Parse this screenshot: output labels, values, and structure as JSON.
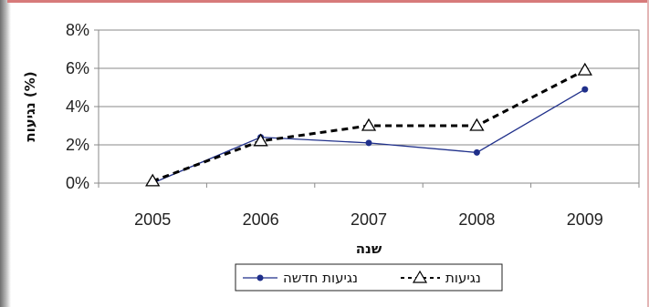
{
  "chart_data": {
    "type": "line",
    "categories": [
      "2005",
      "2006",
      "2007",
      "2008",
      "2009"
    ],
    "series": [
      {
        "name": "נגיעות חדשה",
        "values": [
          0.0,
          2.4,
          2.1,
          1.6,
          4.9
        ],
        "color": "#1f2f8a",
        "marker": "dot",
        "style": "solid"
      },
      {
        "name": "נגיעות",
        "values": [
          0.1,
          2.2,
          3.0,
          3.0,
          5.9
        ],
        "color": "#000000",
        "marker": "triangle",
        "style": "dashed"
      }
    ],
    "ylim": [
      0,
      8
    ],
    "yticks": [
      "0%",
      "2%",
      "4%",
      "6%",
      "8%"
    ],
    "ylabel": "נגיעות (%)",
    "xlabel": "שנה",
    "grid": true,
    "legend_position": "bottom"
  }
}
